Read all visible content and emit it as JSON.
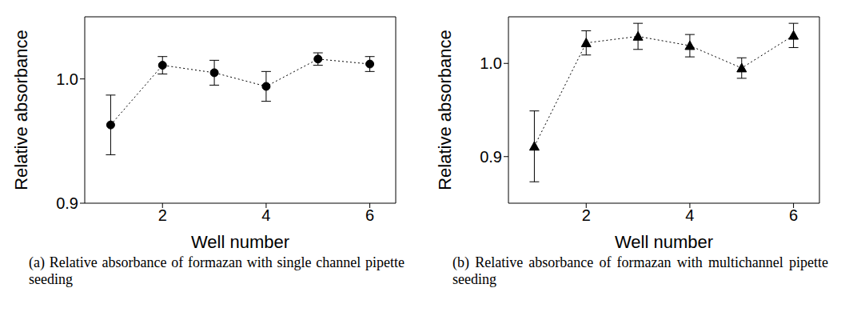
{
  "chart_data": [
    {
      "type": "line",
      "title": "(a) Relative absorbance of formazan with single channel pipette seeding",
      "x_label": "Well number",
      "y_label": "Relative absorbance",
      "x": [
        1,
        2,
        3,
        4,
        5,
        6
      ],
      "values": [
        0.963,
        1.011,
        1.005,
        0.994,
        1.016,
        1.012
      ],
      "errors": [
        0.024,
        0.007,
        0.01,
        0.012,
        0.005,
        0.006
      ],
      "xlim": [
        0.5,
        6.5
      ],
      "xticks": [
        2,
        4,
        6
      ],
      "ylim": [
        0.9,
        1.05
      ],
      "yticks": [
        0.9,
        {
          "value": 1.0,
          "label": "1.0"
        }
      ],
      "color": "#000000",
      "marker": "circle",
      "line_style": "dotted"
    },
    {
      "type": "line",
      "title": "(b) Relative absorbance of formazan with multichannel pipette seeding",
      "x_label": "Well number",
      "y_label": "Relative absorbance",
      "x": [
        1,
        2,
        3,
        4,
        5,
        6
      ],
      "values": [
        0.911,
        1.022,
        1.029,
        1.019,
        0.995,
        1.03
      ],
      "errors": [
        0.038,
        0.013,
        0.014,
        0.012,
        0.011,
        0.013
      ],
      "xlim": [
        0.5,
        6.5
      ],
      "xticks": [
        2,
        4,
        6
      ],
      "ylim": [
        0.85,
        1.05
      ],
      "yticks": [
        0.9,
        {
          "value": 1.0,
          "label": "1.0"
        }
      ],
      "color": "#000000",
      "marker": "triangle",
      "line_style": "dotted"
    }
  ]
}
